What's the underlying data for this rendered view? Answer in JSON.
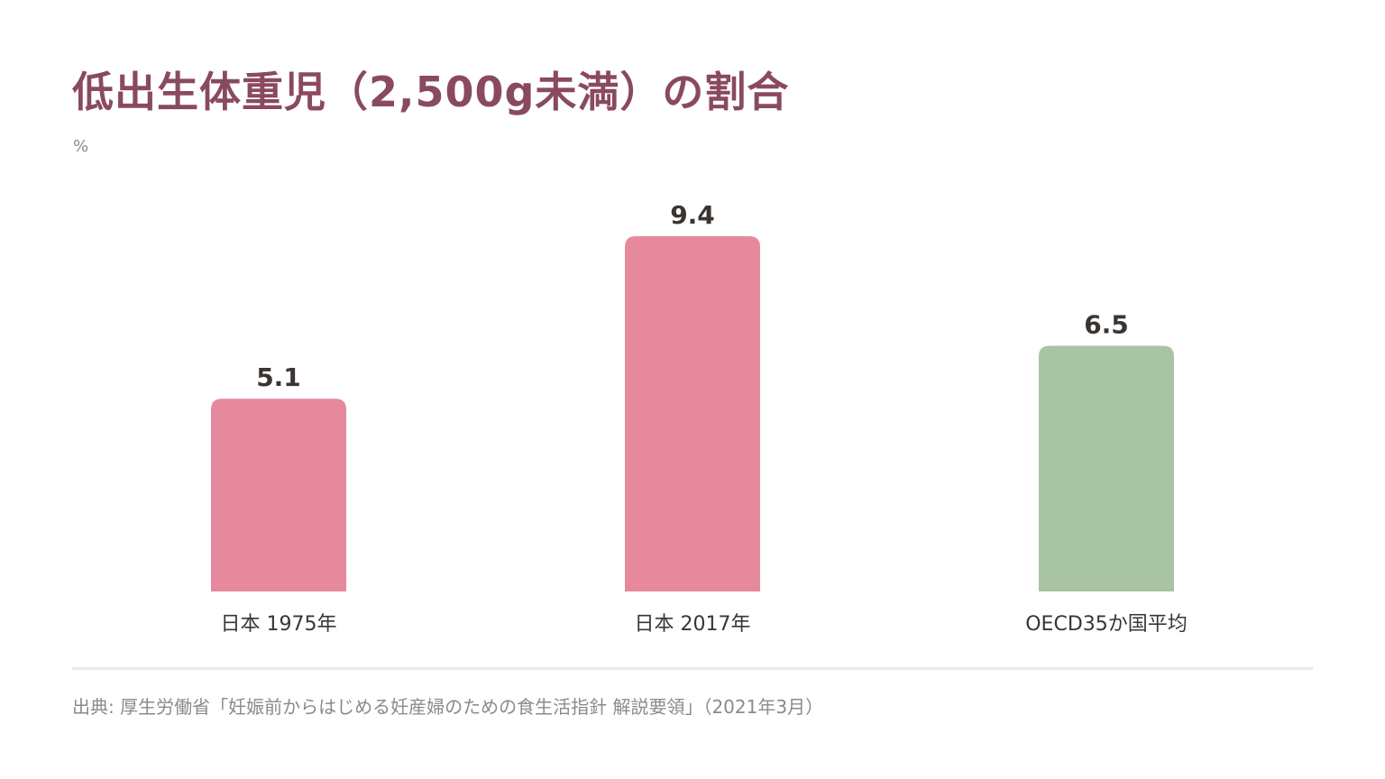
{
  "title": "低出生体重児（2,500g未満）の割合",
  "unit": "%",
  "source": "出典: 厚生労働省「妊娠前からはじめる妊産婦のための食生活指針 解説要領」（2021年3月）",
  "colors": {
    "title": "#8a4a5e",
    "japan_bar": "#e6899c",
    "oecd_bar": "#a8c4a3",
    "value_label": "#3b3532",
    "category_label": "#3b3532",
    "muted_text": "#8d8a87",
    "divider": "#ece8e2"
  },
  "chart_data": {
    "type": "bar",
    "title": "低出生体重児（2,500g未満）の割合",
    "ylabel": "%",
    "xlabel": "",
    "categories": [
      "日本 1975年",
      "日本 2017年",
      "OECD35か国平均"
    ],
    "values": [
      5.1,
      9.4,
      6.5
    ],
    "data_labels": [
      "5.1",
      "9.4",
      "6.5"
    ],
    "bar_colors": [
      "#e6899c",
      "#e6899c",
      "#a8c4a3"
    ],
    "ylim": [
      0,
      9.4
    ],
    "grid": false,
    "legend": "none"
  }
}
